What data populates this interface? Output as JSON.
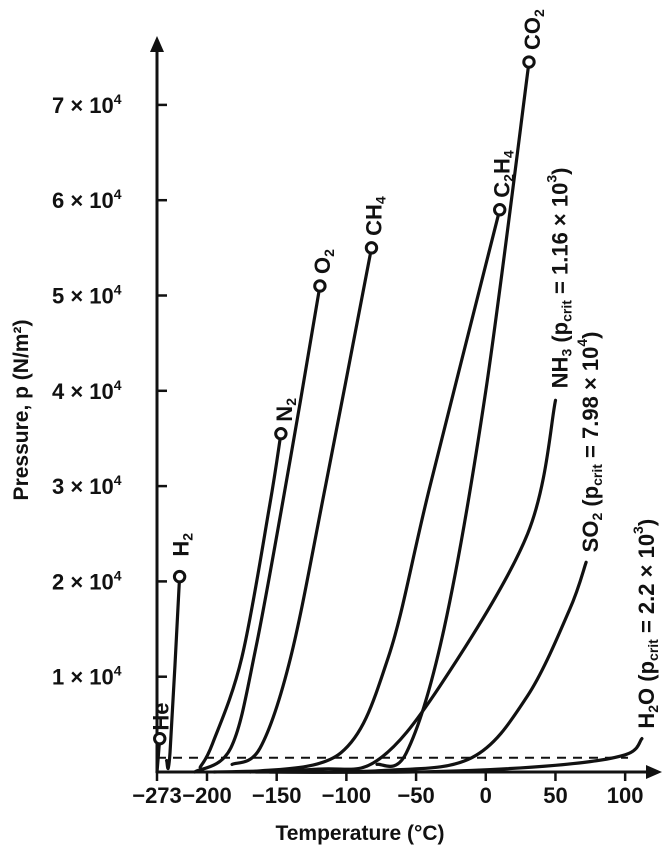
{
  "chart_data": {
    "type": "line",
    "xlabel": "Temperature (°C)",
    "ylabel": "Pressure, p (N/m²)",
    "x_ticks": [
      {
        "value": -273,
        "label": "−273"
      },
      {
        "value": -200,
        "label": "−200"
      },
      {
        "value": -150,
        "label": "−150"
      },
      {
        "value": -100,
        "label": "−100"
      },
      {
        "value": -50,
        "label": "−50"
      },
      {
        "value": 0,
        "label": "0"
      },
      {
        "value": 50,
        "label": "50"
      },
      {
        "value": 100,
        "label": "100"
      }
    ],
    "y_ticks": [
      {
        "value": 10000,
        "mant": "1",
        "exp": "4"
      },
      {
        "value": 20000,
        "mant": "2",
        "exp": "4"
      },
      {
        "value": 30000,
        "mant": "3",
        "exp": "4"
      },
      {
        "value": 40000,
        "mant": "4",
        "exp": "4"
      },
      {
        "value": 50000,
        "mant": "5",
        "exp": "4"
      },
      {
        "value": 60000,
        "mant": "6",
        "exp": "4"
      },
      {
        "value": 70000,
        "mant": "7",
        "exp": "4"
      }
    ],
    "xlim": [
      -273,
      125
    ],
    "ylim": [
      0,
      78000
    ],
    "triple_point_line": 1500,
    "series": [
      {
        "name": "He",
        "x": [
          -273,
          -269
        ],
        "y": [
          0,
          3500
        ],
        "crit": true
      },
      {
        "name": "H2",
        "x": [
          -259,
          -254,
          -240
        ],
        "y": [
          1200,
          2000,
          20500
        ],
        "crit": true
      },
      {
        "name": "N2",
        "x": [
          -210,
          -196,
          -175,
          -155,
          -147
        ],
        "y": [
          500,
          3000,
          12000,
          28000,
          35500
        ],
        "crit": true
      },
      {
        "name": "O2",
        "x": [
          -218,
          -183,
          -165,
          -140,
          -119
        ],
        "y": [
          0,
          2500,
          13000,
          33000,
          51000
        ],
        "crit": true
      },
      {
        "name": "CH4",
        "x": [
          -182,
          -162,
          -140,
          -115,
          -82
        ],
        "y": [
          800,
          2500,
          12000,
          30000,
          55000
        ],
        "crit": true
      },
      {
        "name": "C2H4",
        "x": [
          -169,
          -104,
          -70,
          -40,
          10
        ],
        "y": [
          0,
          2000,
          12000,
          30000,
          59000
        ],
        "crit": true
      },
      {
        "name": "CO2",
        "x": [
          -78,
          -57,
          -30,
          0,
          31
        ],
        "y": [
          800,
          2000,
          15000,
          40000,
          74500
        ],
        "crit": true
      },
      {
        "name": "NH3",
        "x": [
          -195,
          -120,
          -78,
          -33,
          30,
          50
        ],
        "y": [
          0,
          300,
          1200,
          9000,
          25000,
          39000
        ],
        "crit": false
      },
      {
        "name": "SO2",
        "x": [
          -165,
          -75,
          -10,
          30,
          60,
          72
        ],
        "y": [
          0,
          150,
          1500,
          8000,
          17000,
          22000
        ],
        "crit": false
      },
      {
        "name": "H2O",
        "x": [
          -155,
          -40,
          50,
          100,
          112
        ],
        "y": [
          0,
          30,
          700,
          1800,
          3500
        ],
        "crit": false
      }
    ],
    "series_labels": [
      {
        "id": "He",
        "base": "He"
      },
      {
        "id": "H2",
        "base": "H",
        "sub": "2"
      },
      {
        "id": "N2",
        "base": "N",
        "sub": "2"
      },
      {
        "id": "O2",
        "base": "O",
        "sub": "2"
      },
      {
        "id": "CH4",
        "base": "CH",
        "sub": "4"
      },
      {
        "id": "C2H4",
        "base": "C",
        "sub": "2",
        "base2": "H",
        "sub2": "4"
      },
      {
        "id": "CO2",
        "base": "CO",
        "sub": "2"
      },
      {
        "id": "NH3",
        "base": "NH",
        "sub": "3",
        "note_pre": " (p",
        "note_sub": "crit",
        "note_post": " = 1.16 × 10",
        "note_exp": "3",
        "note_close": ")"
      },
      {
        "id": "SO2",
        "base": "SO",
        "sub": "2",
        "note_pre": " (p",
        "note_sub": "crit",
        "note_post": " = 7.98 × 10",
        "note_exp": "4",
        "note_close": ")"
      },
      {
        "id": "H2O",
        "base": "H",
        "sub": "2",
        "base2": "O",
        "note_pre": " (p",
        "note_sub": "crit",
        "note_post": " = 2.2 × 10",
        "note_exp": "3",
        "note_close": ")"
      }
    ]
  }
}
